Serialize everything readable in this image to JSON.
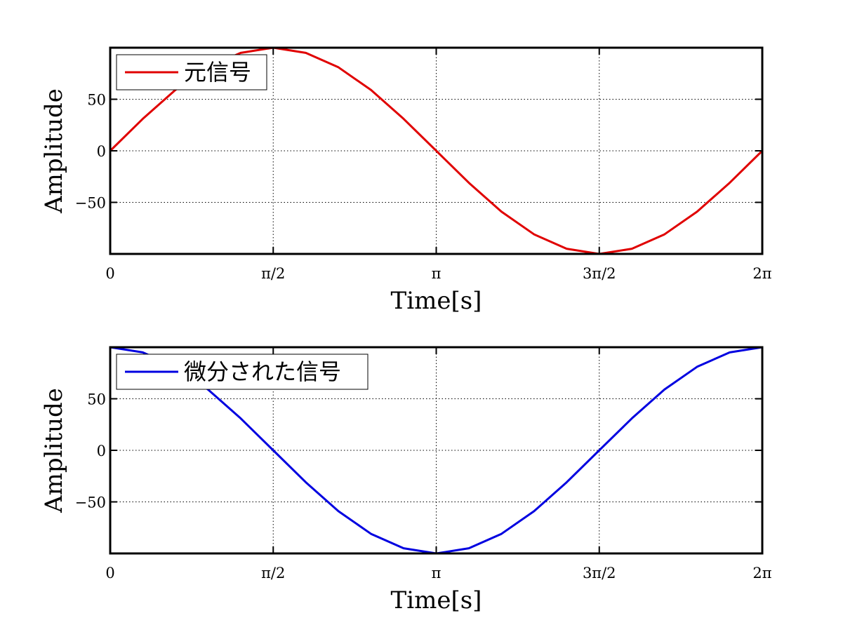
{
  "chart_data": [
    {
      "type": "line",
      "xlabel": "Time[s]",
      "ylabel": "Amplitude",
      "xlim": [
        0,
        6.283185
      ],
      "ylim": [
        -100,
        100
      ],
      "grid": true,
      "legend_position": "top-left",
      "x_ticks": [
        {
          "value": 0,
          "label": "0"
        },
        {
          "value": 1.570796,
          "label": "π/2"
        },
        {
          "value": 3.141593,
          "label": "π"
        },
        {
          "value": 4.712389,
          "label": "3π/2"
        },
        {
          "value": 6.283185,
          "label": "2π"
        }
      ],
      "y_ticks": [
        {
          "value": 50,
          "label": "50"
        },
        {
          "value": 0,
          "label": "0"
        },
        {
          "value": -50,
          "label": "−50"
        }
      ],
      "series": [
        {
          "name": "元信号",
          "color": "#e00000",
          "x": [
            0,
            0.314,
            0.628,
            0.942,
            1.257,
            1.571,
            1.885,
            2.199,
            2.513,
            2.827,
            3.142,
            3.456,
            3.77,
            4.084,
            4.398,
            4.712,
            5.027,
            5.341,
            5.655,
            5.969,
            6.283
          ],
          "y": [
            0,
            31,
            59,
            81,
            95,
            100,
            95,
            81,
            59,
            31,
            0,
            -31,
            -59,
            -81,
            -95,
            -100,
            -95,
            -81,
            -59,
            -31,
            0
          ]
        }
      ]
    },
    {
      "type": "line",
      "xlabel": "Time[s]",
      "ylabel": "Amplitude",
      "xlim": [
        0,
        6.283185
      ],
      "ylim": [
        -100,
        100
      ],
      "grid": true,
      "legend_position": "top-left",
      "x_ticks": [
        {
          "value": 0,
          "label": "0"
        },
        {
          "value": 1.570796,
          "label": "π/2"
        },
        {
          "value": 3.141593,
          "label": "π"
        },
        {
          "value": 4.712389,
          "label": "3π/2"
        },
        {
          "value": 6.283185,
          "label": "2π"
        }
      ],
      "y_ticks": [
        {
          "value": 50,
          "label": "50"
        },
        {
          "value": 0,
          "label": "0"
        },
        {
          "value": -50,
          "label": "−50"
        }
      ],
      "series": [
        {
          "name": "微分された信号",
          "color": "#0000e0",
          "x": [
            0,
            0.314,
            0.628,
            0.942,
            1.257,
            1.571,
            1.885,
            2.199,
            2.513,
            2.827,
            3.142,
            3.456,
            3.77,
            4.084,
            4.398,
            4.712,
            5.027,
            5.341,
            5.655,
            5.969,
            6.283
          ],
          "y": [
            100,
            95,
            81,
            59,
            31,
            0,
            -31,
            -59,
            -81,
            -95,
            -100,
            -95,
            -81,
            -59,
            -31,
            0,
            31,
            59,
            81,
            95,
            100
          ]
        }
      ]
    }
  ]
}
